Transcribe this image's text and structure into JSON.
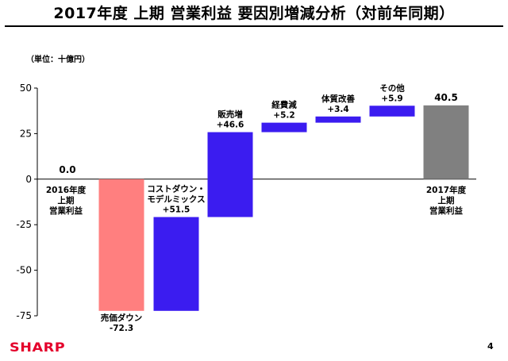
{
  "title": "2017年度 上期 営業利益 要因別増減分析（対前年同期）",
  "unit_label": "（単位：十億円）",
  "brand": "SHARP",
  "page_number": "4",
  "colors": {
    "start_bar": "#808080",
    "decrease": "#ff7f7f",
    "increase": "#3b1cf0",
    "end_bar": "#808080"
  },
  "chart_data": {
    "type": "bar",
    "subtype": "waterfall",
    "ylim": [
      -75,
      50
    ],
    "yticks": [
      50,
      25,
      0,
      -25,
      -50,
      -75
    ],
    "grid": false,
    "bars": [
      {
        "label_lines": [
          "2016年度",
          "上期",
          "営業利益"
        ],
        "value_label": "0.0",
        "base": 0,
        "value": 0.0,
        "kind": "total"
      },
      {
        "label_lines": [
          "売価ダウン"
        ],
        "value_label": "-72.3",
        "base": 0,
        "value": -72.3,
        "kind": "decrease"
      },
      {
        "label_lines": [
          "コストダウン・",
          "モデルミックス"
        ],
        "value_label": "+51.5",
        "base": -72.3,
        "value": 51.5,
        "kind": "increase"
      },
      {
        "label_lines": [
          "販売増"
        ],
        "value_label": "+46.6",
        "base": -20.8,
        "value": 46.6,
        "kind": "increase"
      },
      {
        "label_lines": [
          "経費減"
        ],
        "value_label": "+5.2",
        "base": 25.8,
        "value": 5.2,
        "kind": "increase"
      },
      {
        "label_lines": [
          "体質改善"
        ],
        "value_label": "+3.4",
        "base": 31.0,
        "value": 3.4,
        "kind": "increase"
      },
      {
        "label_lines": [
          "その他"
        ],
        "value_label": "+5.9",
        "base": 34.4,
        "value": 5.9,
        "kind": "increase"
      },
      {
        "label_lines": [
          "2017年度",
          "上期",
          "営業利益"
        ],
        "value_label": "40.5",
        "base": 0,
        "value": 40.5,
        "kind": "total"
      }
    ]
  }
}
